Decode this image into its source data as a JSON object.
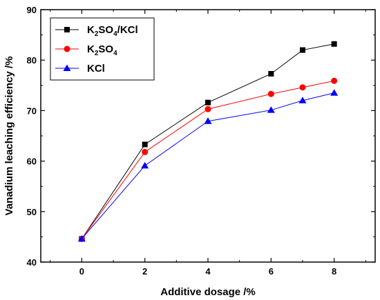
{
  "chart_data": {
    "type": "line",
    "title": "",
    "xlabel": "Additive dosage /%",
    "ylabel": "Vanadium leaching efficiency /%",
    "xlim": [
      -1.3,
      9.3
    ],
    "ylim": [
      40,
      90
    ],
    "xticks": [
      0,
      2,
      4,
      6,
      8
    ],
    "yticks": [
      40,
      50,
      60,
      70,
      80,
      90
    ],
    "grid": false,
    "legend_position": "top-left",
    "series": [
      {
        "name": "K2SO4/KCl",
        "legend_parts": [
          [
            "K",
            ""
          ],
          [
            "2",
            "sub"
          ],
          [
            "SO",
            ""
          ],
          [
            "4",
            "sub"
          ],
          [
            "/KCl",
            ""
          ]
        ],
        "color": "#000000",
        "marker": "square",
        "x": [
          0,
          2,
          4,
          6,
          7,
          8
        ],
        "y": [
          44.6,
          63.3,
          71.6,
          77.3,
          82.0,
          83.2
        ]
      },
      {
        "name": "K2SO4",
        "legend_parts": [
          [
            "K",
            ""
          ],
          [
            "2",
            "sub"
          ],
          [
            "SO",
            ""
          ],
          [
            "4",
            "sub"
          ]
        ],
        "color": "#ff0000",
        "marker": "circle",
        "x": [
          0,
          2,
          4,
          6,
          7,
          8
        ],
        "y": [
          44.6,
          61.8,
          70.3,
          73.3,
          74.6,
          75.9
        ]
      },
      {
        "name": "KCl",
        "legend_parts": [
          [
            "KCl",
            ""
          ]
        ],
        "color": "#0000ff",
        "marker": "triangle",
        "x": [
          0,
          2,
          4,
          6,
          7,
          8
        ],
        "y": [
          44.6,
          59.1,
          67.9,
          70.1,
          72.0,
          73.5
        ]
      }
    ]
  }
}
